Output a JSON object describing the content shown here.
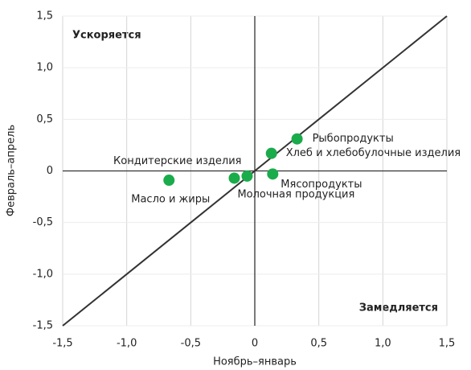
{
  "chart_data": {
    "type": "scatter",
    "xlabel": "Ноябрь–январь",
    "ylabel": "Февраль–апрель",
    "annotations": [
      "Ускоряется",
      "Замедляется"
    ],
    "labels": [
      "Кондитерские изделия",
      "Масло и жиры",
      "Молочная продукция",
      "Мясопродукты",
      "Хлеб и хлебобулочные изделия",
      "Рыбопродукты"
    ],
    "x": [
      -0.16,
      -0.67,
      -0.06,
      0.14,
      0.13,
      0.33
    ],
    "values": [
      -0.07,
      -0.09,
      -0.05,
      -0.03,
      0.17,
      0.31
    ],
    "color": "#1aab4b",
    "xlim": [
      -1.5,
      1.5
    ],
    "ylim": [
      -1.5,
      1.5
    ],
    "xticks": [
      {
        "value": -1.5,
        "label": "-1,5"
      },
      {
        "value": -1,
        "label": "-1,0"
      },
      {
        "value": -0.5,
        "label": "-0,5"
      },
      0,
      {
        "value": 0.5,
        "label": "0,5"
      },
      {
        "value": 1,
        "label": "1,0"
      },
      {
        "value": 1.5,
        "label": "1,5"
      }
    ],
    "yticks": [
      {
        "value": -1.5,
        "label": "-1,5"
      },
      {
        "value": -1,
        "label": "-1,0"
      },
      {
        "value": -0.5,
        "label": "-0,5"
      },
      0,
      {
        "value": 0.5,
        "label": "0,5"
      },
      {
        "value": 1,
        "label": "1,0"
      },
      {
        "value": 1.5,
        "label": "1,5"
      }
    ],
    "grid": true
  }
}
